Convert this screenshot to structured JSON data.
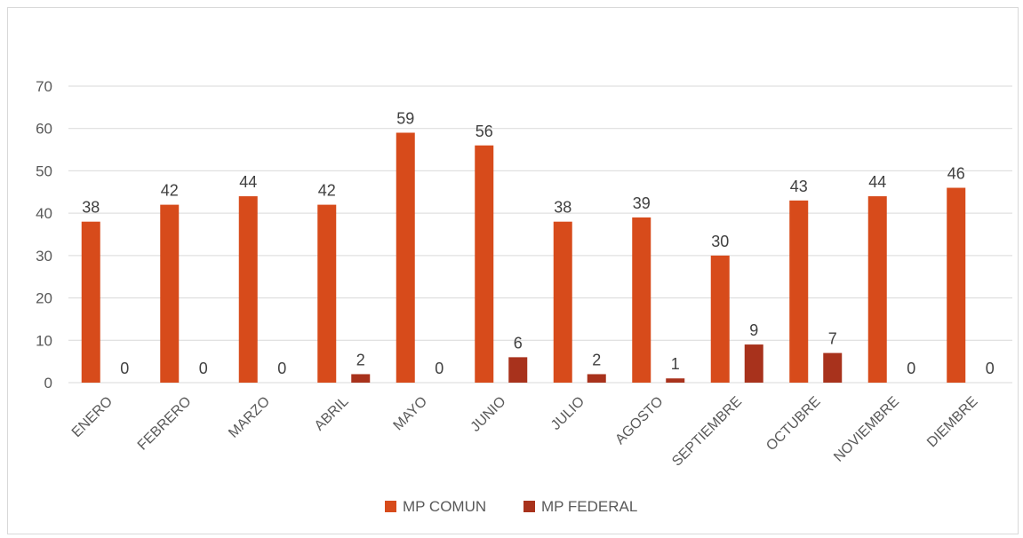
{
  "chart_data": {
    "type": "bar",
    "title": "",
    "xlabel": "",
    "ylabel": "",
    "ylim": [
      0,
      70
    ],
    "yticks": [
      0,
      10,
      20,
      30,
      40,
      50,
      60,
      70
    ],
    "grid": true,
    "legend_position": "bottom",
    "categories": [
      "ENERO",
      "FEBRERO",
      "MARZO",
      "ABRIL",
      "MAYO",
      "JUNIO",
      "JULIO",
      "AGOSTO",
      "SEPTIEMBRE",
      "OCTUBRE",
      "NOVIEMBRE",
      "DIEMBRE"
    ],
    "series": [
      {
        "name": "MP COMUN",
        "color": "#d74b1b",
        "values": [
          38,
          42,
          44,
          42,
          59,
          56,
          38,
          39,
          30,
          43,
          44,
          46
        ]
      },
      {
        "name": "MP FEDERAL",
        "color": "#a8321c",
        "values": [
          0,
          0,
          0,
          2,
          0,
          6,
          2,
          1,
          9,
          7,
          0,
          0
        ]
      }
    ]
  }
}
